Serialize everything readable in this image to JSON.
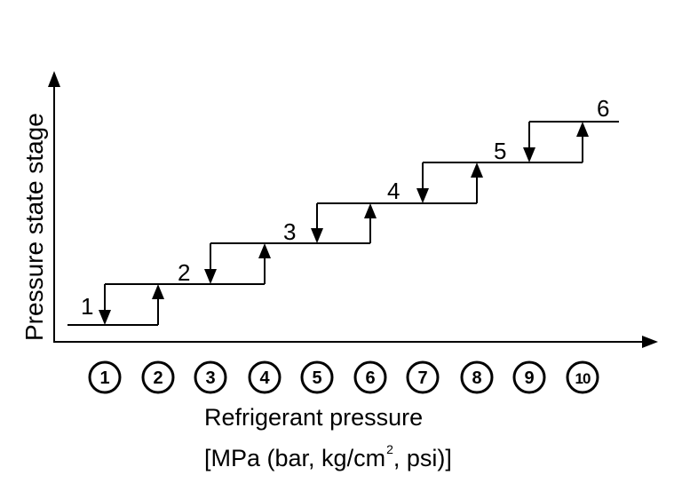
{
  "y_axis_title": "Pressure state stage",
  "x_axis_title_line1": "Refrigerant pressure",
  "x_axis_unit": {
    "prefix": "[MPa (bar, kg/cm",
    "superscript": "2",
    "suffix": ", psi)]"
  },
  "stages": [
    "1",
    "2",
    "3",
    "4",
    "5",
    "6"
  ],
  "pressure_points": [
    "1",
    "2",
    "3",
    "4",
    "5",
    "6",
    "7",
    "8",
    "9",
    "10"
  ],
  "arrows": [
    {
      "direction": "down",
      "point": "1",
      "from_stage": "2",
      "to_stage": "1"
    },
    {
      "direction": "up",
      "point": "2",
      "from_stage": "1",
      "to_stage": "2"
    },
    {
      "direction": "down",
      "point": "3",
      "from_stage": "3",
      "to_stage": "2"
    },
    {
      "direction": "up",
      "point": "4",
      "from_stage": "2",
      "to_stage": "3"
    },
    {
      "direction": "down",
      "point": "5",
      "from_stage": "4",
      "to_stage": "3"
    },
    {
      "direction": "up",
      "point": "6",
      "from_stage": "3",
      "to_stage": "4"
    },
    {
      "direction": "down",
      "point": "7",
      "from_stage": "5",
      "to_stage": "4"
    },
    {
      "direction": "up",
      "point": "8",
      "from_stage": "4",
      "to_stage": "5"
    },
    {
      "direction": "down",
      "point": "9",
      "from_stage": "6",
      "to_stage": "5"
    },
    {
      "direction": "up",
      "point": "10",
      "from_stage": "5",
      "to_stage": "6"
    }
  ]
}
